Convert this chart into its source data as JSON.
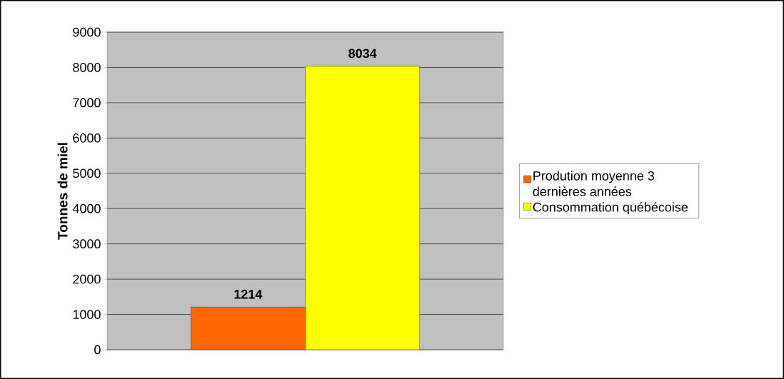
{
  "chart_data": {
    "type": "bar",
    "ylabel": "Tonnes de miel",
    "categories": [
      null
    ],
    "series": [
      {
        "name": "Prodution moyenne 3 dernières années",
        "color": "#ff6600",
        "values": [
          1214
        ],
        "value_labels": [
          "1214"
        ]
      },
      {
        "name": "Consommation québécoise",
        "color": "#ffff00",
        "values": [
          8034
        ],
        "value_labels": [
          "8034"
        ]
      }
    ],
    "ylim": [
      0,
      9000
    ],
    "yticks": [
      0,
      1000,
      2000,
      3000,
      4000,
      5000,
      6000,
      7000,
      8000,
      9000
    ],
    "grid": "y",
    "legend": "right"
  }
}
